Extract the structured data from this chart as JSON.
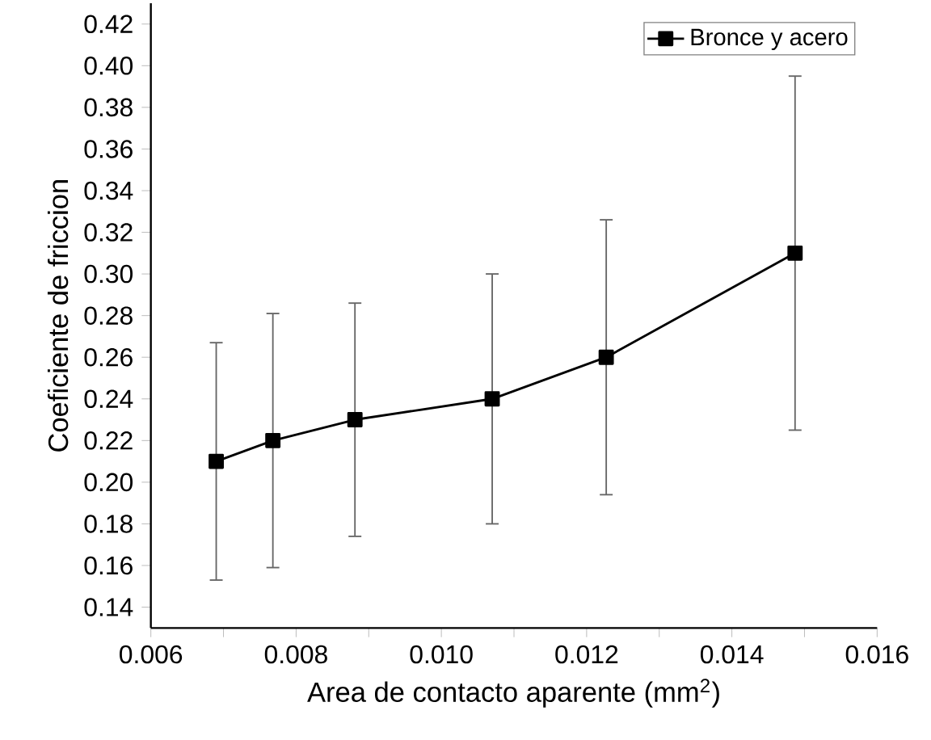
{
  "chart_data": {
    "type": "line",
    "xlabel": "Area de contacto aparente (mm$^{2}$)",
    "ylabel": "Coeficiente de friccion",
    "x": [
      0.0069,
      0.00768,
      0.00881,
      0.0107,
      0.01227,
      0.01487
    ],
    "series": [
      {
        "name": "Bronce y acero",
        "color": "#000000",
        "values": [
          0.21,
          0.22,
          0.23,
          0.24,
          0.26,
          0.31
        ],
        "errors": [
          0.057,
          0.061,
          0.056,
          0.06,
          0.066,
          0.085
        ]
      }
    ],
    "xlim": [
      0.006,
      0.016
    ],
    "ylim": [
      0.13,
      0.43
    ],
    "xticks": [
      0.006,
      {
        "value": 0.007,
        "label": null
      },
      0.008,
      {
        "value": 0.009,
        "label": null
      },
      {
        "value": 0.01,
        "label": "0.010"
      },
      {
        "value": 0.011,
        "label": null
      },
      0.012,
      {
        "value": 0.013,
        "label": null
      },
      0.014,
      {
        "value": 0.015,
        "label": null
      },
      0.016
    ],
    "yticks": [
      0.14,
      0.16,
      0.18,
      {
        "value": 0.2,
        "label": "0.20"
      },
      0.22,
      0.24,
      0.26,
      0.28,
      {
        "value": 0.3,
        "label": "0.30"
      },
      0.32,
      0.34,
      0.36,
      0.38,
      {
        "value": 0.4,
        "label": "0.40"
      },
      0.42
    ],
    "grid": false,
    "legend": "top right",
    "marker": "square",
    "line_style": "solid"
  }
}
